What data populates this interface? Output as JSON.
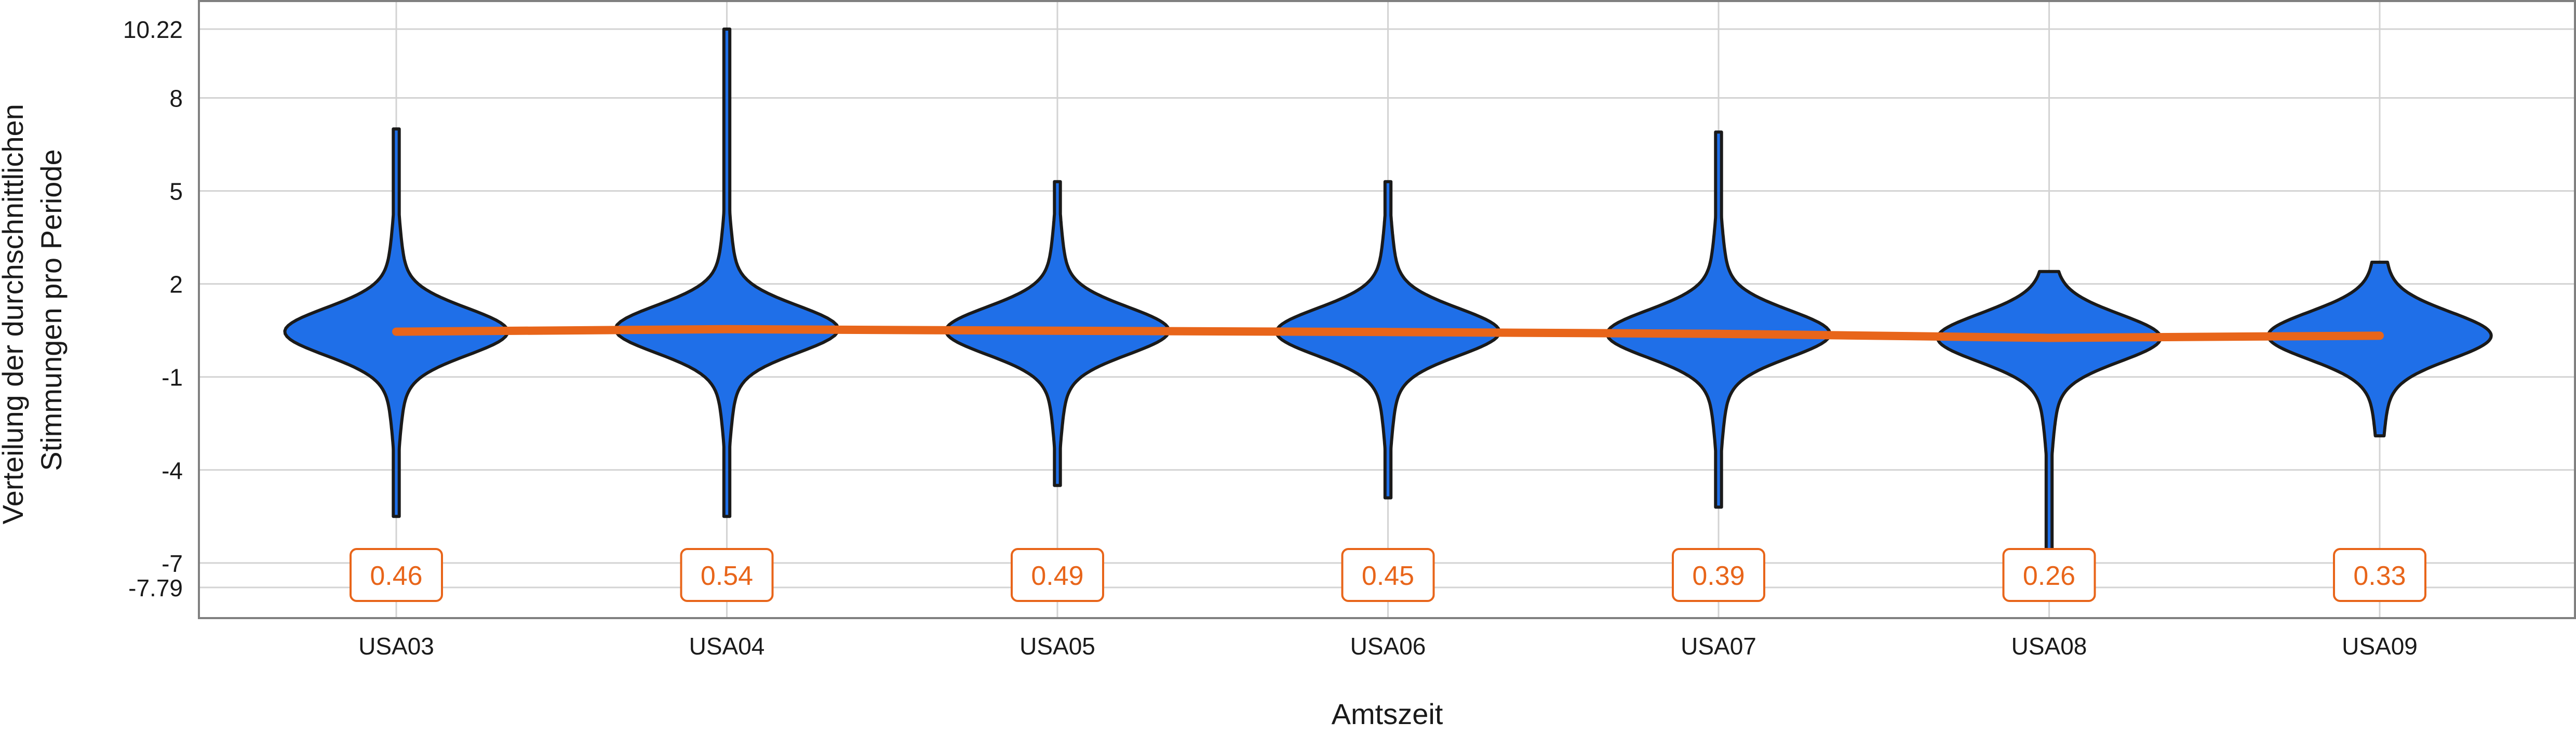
{
  "chart_data": {
    "type": "violin",
    "xlabel": "Amtszeit",
    "ylabel_lines": [
      "Verteilung der durchschnittlichen",
      "Stimmungen pro Periode"
    ],
    "ylim": [
      -7.79,
      10.22
    ],
    "yticks": [
      {
        "value": 10.22,
        "label": "10.22"
      },
      {
        "value": 8,
        "label": "8"
      },
      {
        "value": 5,
        "label": "5"
      },
      {
        "value": 2,
        "label": "2"
      },
      {
        "value": -1,
        "label": "-1"
      },
      {
        "value": -4,
        "label": "-4"
      },
      {
        "value": -7,
        "label": "-7"
      },
      {
        "value": -7.79,
        "label": "-7.79"
      }
    ],
    "grid": true,
    "colors": {
      "violin_fill": "#1f6fe8",
      "violin_stroke": "#1a1a1a",
      "mean_line": "#e8651a",
      "label_border": "#e8651a",
      "label_text": "#e8651a",
      "grid": "#d3d3d3",
      "panel_border": "#808080"
    },
    "categories": [
      "USA03",
      "USA04",
      "USA05",
      "USA06",
      "USA07",
      "USA08",
      "USA09"
    ],
    "means": [
      0.46,
      0.54,
      0.49,
      0.45,
      0.39,
      0.26,
      0.33
    ],
    "mean_labels": [
      "0.46",
      "0.54",
      "0.49",
      "0.45",
      "0.39",
      "0.26",
      "0.33"
    ],
    "ranges": [
      [
        -5.5,
        7.0
      ],
      [
        -5.5,
        10.22
      ],
      [
        -4.5,
        5.3
      ],
      [
        -4.9,
        5.3
      ],
      [
        -5.2,
        6.9
      ],
      [
        -7.6,
        2.4
      ],
      [
        -2.9,
        2.7
      ]
    ]
  }
}
